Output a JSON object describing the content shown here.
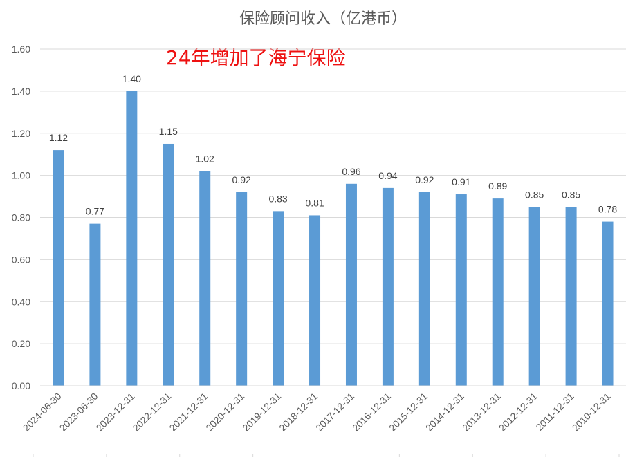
{
  "chart_data": {
    "type": "bar",
    "title": "保险顾问收入（亿港币）",
    "annotation": "24年增加了海宁保险",
    "xlabel": "",
    "ylabel": "",
    "ylim": [
      0,
      1.6
    ],
    "yticks": [
      "0.00",
      "0.20",
      "0.40",
      "0.60",
      "0.80",
      "1.00",
      "1.20",
      "1.40",
      "1.60"
    ],
    "categories": [
      "2024-06-30",
      "2023-06-30",
      "2023-12-31",
      "2022-12-31",
      "2021-12-31",
      "2020-12-31",
      "2019-12-31",
      "2018-12-31",
      "2017-12-31",
      "2016-12-31",
      "2015-12-31",
      "2014-12-31",
      "2013-12-31",
      "2012-12-31",
      "2011-12-31",
      "2010-12-31"
    ],
    "values": [
      1.12,
      0.77,
      1.4,
      1.15,
      1.02,
      0.92,
      0.83,
      0.81,
      0.96,
      0.94,
      0.92,
      0.91,
      0.89,
      0.85,
      0.85,
      0.78
    ],
    "data_labels": [
      "1.12",
      "0.77",
      "1.40",
      "1.15",
      "1.02",
      "0.92",
      "0.83",
      "0.81",
      "0.96",
      "0.94",
      "0.92",
      "0.91",
      "0.89",
      "0.85",
      "0.85",
      "0.78"
    ],
    "grid": true,
    "legend": "none",
    "colors": {
      "bar": "#5b9bd5",
      "grid": "#d9d9d9",
      "annotation": "#ee1111"
    }
  }
}
